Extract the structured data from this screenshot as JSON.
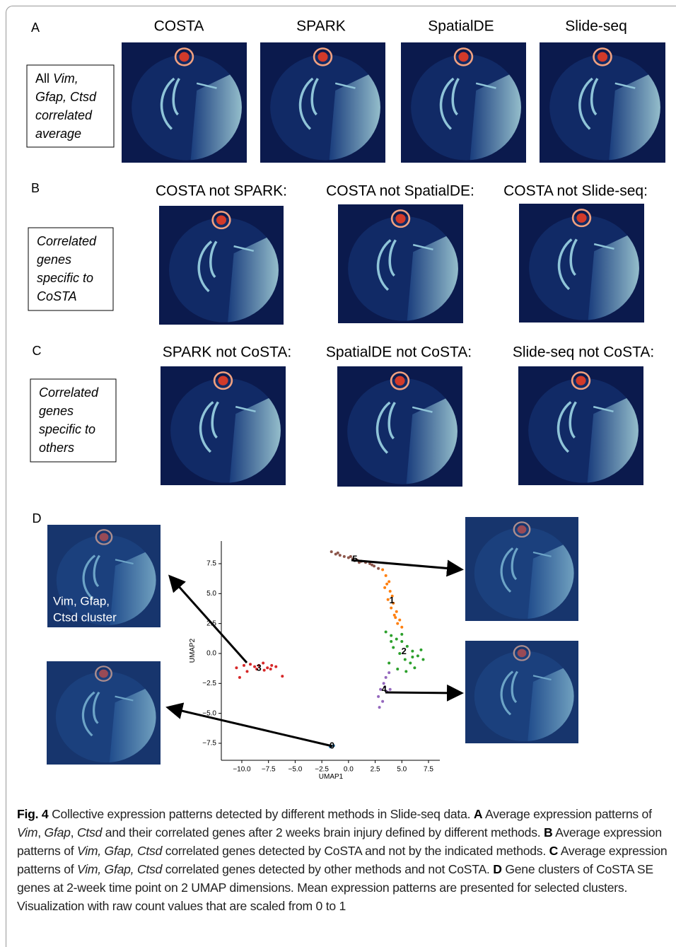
{
  "figure": {
    "panels": [
      {
        "letter": "A",
        "titles": [
          "COSTA",
          "SPARK",
          "SpatialDE",
          "Slide-seq"
        ],
        "box": [
          [
            {
              "text": "All "
            },
            {
              "text": "Vim,",
              "italic": true
            }
          ],
          [
            {
              "text": "Gfap, Ctsd",
              "italic": true
            }
          ],
          [
            {
              "text": "correlated",
              "italic": true
            }
          ],
          [
            {
              "text": "average",
              "italic": true
            }
          ]
        ]
      },
      {
        "letter": "B",
        "titles": [
          "COSTA not SPARK:",
          "COSTA not SpatialDE:",
          "COSTA not Slide-seq:"
        ],
        "box": [
          [
            {
              "text": "Correlated",
              "italic": true
            }
          ],
          [
            {
              "text": "genes",
              "italic": true
            }
          ],
          [
            {
              "text": "specific to",
              "italic": true
            }
          ],
          [
            {
              "text": "CoSTA",
              "italic": true
            }
          ]
        ]
      },
      {
        "letter": "C",
        "titles": [
          "SPARK not CoSTA:",
          "SpatialDE not CoSTA:",
          "Slide-seq not CoSTA:"
        ],
        "box": [
          [
            {
              "text": "Correlated",
              "italic": true
            }
          ],
          [
            {
              "text": "genes",
              "italic": true
            }
          ],
          [
            {
              "text": "specific to",
              "italic": true
            }
          ],
          [
            {
              "text": "others",
              "italic": true
            }
          ]
        ]
      }
    ],
    "panel_d": {
      "letter": "D",
      "cluster_caption": [
        "Vim, Gfap,",
        "Ctsd cluster"
      ]
    },
    "umap": {
      "type": "scatter",
      "xlabel": "UMAP1",
      "ylabel": "UMAP2",
      "xlim": [
        -11.92,
        8.56
      ],
      "ylim": [
        -8.92,
        9.39
      ],
      "xticks": [
        {
          "value": -10,
          "label": "−10.0"
        },
        {
          "value": -7.5,
          "label": "−7.5"
        },
        {
          "value": -5,
          "label": "−5.0"
        },
        {
          "value": -2.5,
          "label": "−2.5"
        },
        {
          "value": 0,
          "label": "0.0"
        },
        {
          "value": 2.5,
          "label": "2.5"
        },
        {
          "value": 5,
          "label": "5.0"
        },
        {
          "value": 7.5,
          "label": "7.5"
        }
      ],
      "yticks": [
        {
          "value": -7.5,
          "label": "−7.5"
        },
        {
          "value": -5,
          "label": "−5.0"
        },
        {
          "value": -2.5,
          "label": "−2.5"
        },
        {
          "value": 0,
          "label": "0.0"
        },
        {
          "value": 2.5,
          "label": "2.5"
        },
        {
          "value": 5,
          "label": "5.0"
        },
        {
          "value": 7.5,
          "label": "7.5"
        }
      ],
      "series": [
        {
          "name": "0",
          "color": "#1f77b4",
          "x": [
            -1.7,
            -1.4
          ],
          "values": [
            -7.8,
            -7.7
          ]
        },
        {
          "name": "1",
          "color": "#ff7f0e",
          "x": [
            3.2,
            3.5,
            3.8,
            3.4,
            3.9,
            4.1,
            3.7,
            4.2,
            4.0,
            4.5,
            4.3,
            4.8,
            4.6,
            5.0,
            3.6,
            4.4
          ],
          "values": [
            7.0,
            6.5,
            6.0,
            5.5,
            5.2,
            4.8,
            4.5,
            4.2,
            3.8,
            3.5,
            3.2,
            2.8,
            2.5,
            2.2,
            5.8,
            3.0
          ]
        },
        {
          "name": "2",
          "color": "#2ca02c",
          "x": [
            3.5,
            4.0,
            4.5,
            5.0,
            5.5,
            6.0,
            6.5,
            7.0,
            4.2,
            4.8,
            5.3,
            5.8,
            6.2,
            3.8,
            4.6,
            5.4,
            6.8,
            4.0,
            5.0,
            6.0
          ],
          "values": [
            1.8,
            1.5,
            1.2,
            1.0,
            0.6,
            0.2,
            -0.2,
            -0.5,
            0.5,
            0,
            -0.5,
            -0.8,
            -1.2,
            -0.8,
            -1.3,
            -1.5,
            0.3,
            1.0,
            1.6,
            -0.3
          ]
        },
        {
          "name": "3",
          "color": "#d62728",
          "x": [
            -10.5,
            -9.8,
            -9.2,
            -8.8,
            -8.4,
            -8.0,
            -7.6,
            -7.2,
            -6.8,
            -6.2,
            -9.5,
            -8.6,
            -7.9,
            -7.3,
            -10.2
          ],
          "values": [
            -1.2,
            -1.0,
            -0.9,
            -1.1,
            -1.0,
            -0.8,
            -1.2,
            -1.0,
            -1.1,
            -1.9,
            -1.5,
            -1.3,
            -1.4,
            -1.3,
            -2.0
          ]
        },
        {
          "name": "4",
          "color": "#9467bd",
          "x": [
            3.8,
            3.5,
            3.3,
            3.0,
            2.8,
            3.6,
            3.9,
            3.2,
            2.9,
            3.4
          ],
          "values": [
            -1.6,
            -2.0,
            -2.5,
            -3.0,
            -3.6,
            -3.2,
            -3.0,
            -4.0,
            -4.5,
            -2.8
          ]
        },
        {
          "name": "5",
          "color": "#8c564b",
          "x": [
            -1.6,
            -1.2,
            -0.8,
            -0.4,
            0,
            0.4,
            0.8,
            1.2,
            1.6,
            2,
            2.4,
            2.8,
            -1.0,
            0.2,
            1.0,
            2.2
          ],
          "values": [
            8.5,
            8.3,
            8.2,
            8.1,
            8.0,
            7.9,
            7.8,
            7.7,
            7.6,
            7.5,
            7.3,
            7.1,
            8.4,
            8.1,
            7.6,
            7.4
          ]
        }
      ]
    },
    "caption": [
      {
        "text": "Fig. 4",
        "bold": true
      },
      {
        "text": "  Collective expression patterns detected by different methods in Slide-seq data. "
      },
      {
        "text": "A",
        "bold": true
      },
      {
        "text": " Average expression patterns of "
      },
      {
        "text": "Vim",
        "italic": true
      },
      {
        "text": ", "
      },
      {
        "text": "Gfap",
        "italic": true
      },
      {
        "text": ", "
      },
      {
        "text": "Ctsd",
        "italic": true
      },
      {
        "text": " and their correlated genes after 2 weeks brain injury defined by different methods. "
      },
      {
        "text": "B",
        "bold": true
      },
      {
        "text": " Average expression patterns of "
      },
      {
        "text": "Vim, Gfap, Ctsd",
        "italic": true
      },
      {
        "text": " correlated genes detected by CoSTA and not by the indicated methods. "
      },
      {
        "text": "C",
        "bold": true
      },
      {
        "text": " Average expression patterns of "
      },
      {
        "text": "Vim, Gfap, Ctsd",
        "italic": true
      },
      {
        "text": " correlated genes detected by other methods and not CoSTA. "
      },
      {
        "text": "D",
        "bold": true
      },
      {
        "text": " Gene clusters of CoSTA SE genes at 2-week time point on 2 UMAP dimensions. Mean expression patterns are presented for selected clusters. Visualization with raw count values that are scaled from 0 to 1"
      }
    ]
  }
}
